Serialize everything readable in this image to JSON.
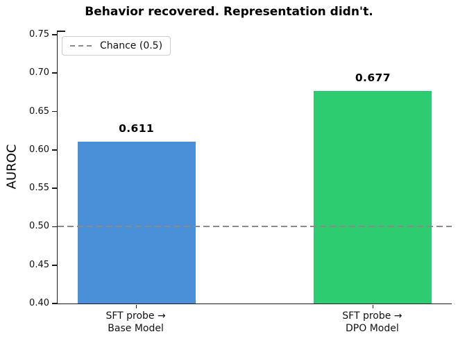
{
  "chart_data": {
    "type": "bar",
    "title": "Behavior recovered. Representation didn't.",
    "ylabel": "AUROC",
    "xlabel": "",
    "ylim": [
      0.4,
      0.75
    ],
    "yticks": [
      0.4,
      0.45,
      0.5,
      0.55,
      0.6,
      0.65,
      0.7,
      0.75
    ],
    "categories": [
      [
        "SFT probe →",
        "Base Model"
      ],
      [
        "SFT probe →",
        "DPO Model"
      ]
    ],
    "values": [
      0.611,
      0.677
    ],
    "value_labels": [
      "0.611",
      "0.677"
    ],
    "bar_colors": [
      "#4A90D9",
      "#2ECC71"
    ],
    "reference_line": {
      "value": 0.5,
      "label": "Chance (0.5)",
      "color": "#8a8a8a",
      "style": "dashed"
    },
    "legend_position": "upper-left",
    "grid": false
  }
}
